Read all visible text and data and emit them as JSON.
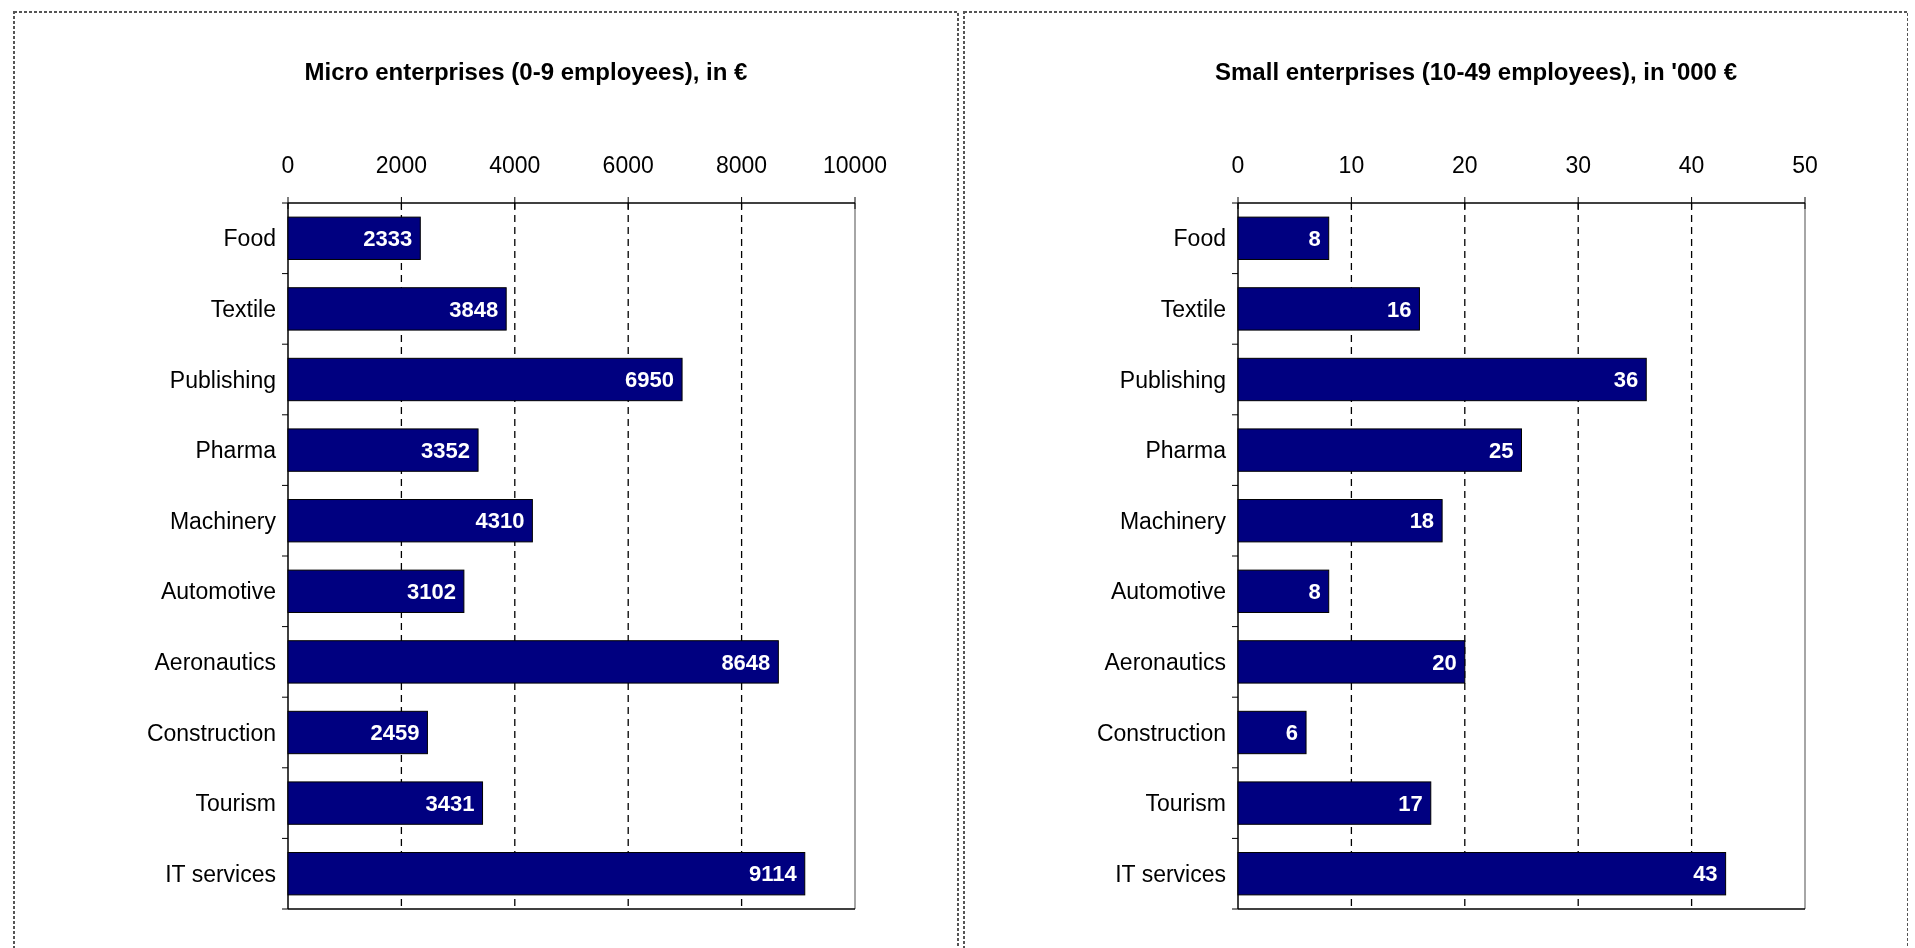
{
  "chart_data": [
    {
      "type": "bar",
      "orientation": "horizontal",
      "title": "Micro enterprises (0-9 employees), in €",
      "categories": [
        "Food",
        "Textile",
        "Publishing",
        "Pharma",
        "Machinery",
        "Automotive",
        "Aeronautics",
        "Construction",
        "Tourism",
        "IT services"
      ],
      "values": [
        2333,
        3848,
        6950,
        3352,
        4310,
        3102,
        8648,
        2459,
        3431,
        9114
      ],
      "color": "#000080",
      "xlim": [
        0,
        10000
      ],
      "xticks": [
        0,
        2000,
        4000,
        6000,
        8000,
        10000
      ],
      "grid": "x",
      "data_labels": true
    },
    {
      "type": "bar",
      "orientation": "horizontal",
      "title": "Small enterprises (10-49 employees), in '000 €",
      "categories": [
        "Food",
        "Textile",
        "Publishing",
        "Pharma",
        "Machinery",
        "Automotive",
        "Aeronautics",
        "Construction",
        "Tourism",
        "IT services"
      ],
      "values": [
        8,
        16,
        36,
        25,
        18,
        8,
        20,
        6,
        17,
        43
      ],
      "color": "#000080",
      "xlim": [
        0,
        50
      ],
      "xticks": [
        0,
        10,
        20,
        30,
        40,
        50
      ],
      "grid": "x",
      "data_labels": true
    }
  ]
}
